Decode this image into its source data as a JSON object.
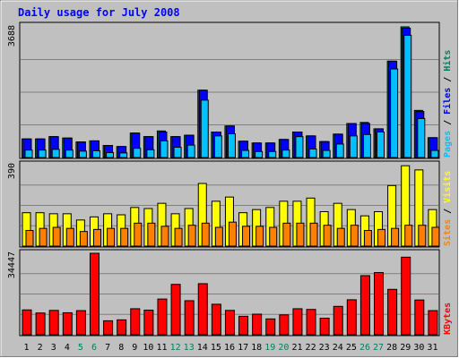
{
  "title": "Daily usage for July 2008",
  "colors": {
    "background": "#c0c0c0",
    "hits": "#00805c",
    "files": "#0000ff",
    "pages": "#00c0ff",
    "visits": "#ffff00",
    "sites": "#ff8000",
    "kbytes": "#ff0000",
    "title": "#0000ff",
    "weekend_label": "#00805c",
    "weekday_label": "#000000"
  },
  "chart_data": [
    {
      "type": "bar",
      "panel": "top",
      "max_label": "3688",
      "ylim": [
        0,
        3688
      ],
      "legend_labels": [
        "Pages",
        "Files",
        "Hits"
      ],
      "legend_separator": " / ",
      "categories": [
        "1",
        "2",
        "3",
        "4",
        "5",
        "6",
        "7",
        "8",
        "9",
        "10",
        "11",
        "12",
        "13",
        "14",
        "15",
        "16",
        "17",
        "18",
        "19",
        "20",
        "21",
        "22",
        "23",
        "24",
        "25",
        "26",
        "27",
        "28",
        "29",
        "30",
        "31"
      ],
      "series": [
        {
          "name": "Hits",
          "values": [
            525,
            525,
            590,
            550,
            440,
            470,
            340,
            310,
            690,
            590,
            750,
            590,
            630,
            1900,
            720,
            890,
            460,
            410,
            410,
            510,
            720,
            610,
            450,
            660,
            960,
            990,
            810,
            2720,
            3688,
            1330,
            560
          ]
        },
        {
          "name": "Files",
          "values": [
            525,
            525,
            590,
            550,
            440,
            470,
            340,
            310,
            690,
            590,
            720,
            590,
            630,
            1900,
            720,
            890,
            460,
            410,
            410,
            510,
            720,
            610,
            450,
            660,
            960,
            960,
            810,
            2720,
            3650,
            1300,
            560
          ]
        },
        {
          "name": "Pages",
          "values": [
            210,
            210,
            230,
            210,
            180,
            190,
            140,
            130,
            260,
            220,
            470,
            290,
            350,
            1620,
            610,
            670,
            200,
            170,
            170,
            210,
            590,
            240,
            200,
            380,
            610,
            650,
            720,
            2500,
            3450,
            1100,
            200
          ]
        }
      ]
    },
    {
      "type": "bar",
      "panel": "middle",
      "max_label": "390",
      "ylim": [
        0,
        390
      ],
      "legend_labels": [
        "Sites",
        "Visits"
      ],
      "legend_separator": " / ",
      "categories": [
        "1",
        "2",
        "3",
        "4",
        "5",
        "6",
        "7",
        "8",
        "9",
        "10",
        "11",
        "12",
        "13",
        "14",
        "15",
        "16",
        "17",
        "18",
        "19",
        "20",
        "21",
        "22",
        "23",
        "24",
        "25",
        "26",
        "27",
        "28",
        "29",
        "30",
        "31"
      ],
      "series": [
        {
          "name": "Visits",
          "values": [
            160,
            160,
            155,
            155,
            125,
            140,
            155,
            150,
            185,
            180,
            205,
            155,
            180,
            300,
            215,
            235,
            160,
            175,
            185,
            215,
            215,
            230,
            165,
            205,
            175,
            145,
            165,
            290,
            385,
            365,
            175
          ]
        },
        {
          "name": "Sites",
          "values": [
            75,
            85,
            90,
            85,
            70,
            80,
            85,
            85,
            110,
            110,
            95,
            85,
            100,
            110,
            90,
            115,
            95,
            95,
            90,
            110,
            110,
            110,
            100,
            85,
            100,
            75,
            80,
            85,
            100,
            100,
            90
          ]
        }
      ]
    },
    {
      "type": "bar",
      "panel": "bottom",
      "max_label": "34447",
      "ylim": [
        0,
        34447
      ],
      "legend_labels": [
        "KBytes"
      ],
      "categories": [
        "1",
        "2",
        "3",
        "4",
        "5",
        "6",
        "7",
        "8",
        "9",
        "10",
        "11",
        "12",
        "13",
        "14",
        "15",
        "16",
        "17",
        "18",
        "19",
        "20",
        "21",
        "22",
        "23",
        "24",
        "25",
        "26",
        "27",
        "28",
        "29",
        "30",
        "31"
      ],
      "weekend_days": [
        "5",
        "6",
        "12",
        "13",
        "19",
        "20",
        "26",
        "27"
      ],
      "series": [
        {
          "name": "KBytes",
          "values": [
            10500,
            9200,
            10300,
            9300,
            10200,
            34447,
            5900,
            6300,
            11000,
            10400,
            15100,
            21300,
            14400,
            21600,
            12900,
            10300,
            7800,
            8700,
            6700,
            8400,
            11000,
            10700,
            7000,
            12000,
            14800,
            25000,
            26300,
            19200,
            32800,
            14700,
            10200
          ]
        }
      ]
    }
  ]
}
